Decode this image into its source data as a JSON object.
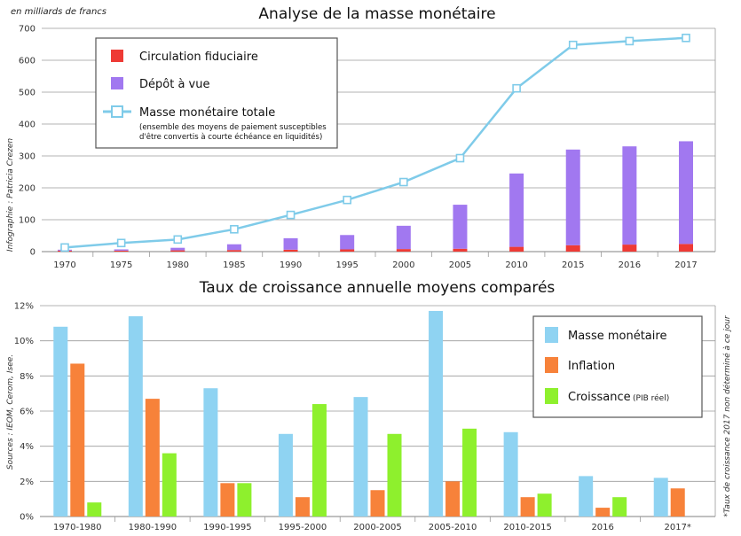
{
  "chart_data": [
    {
      "type": "bar",
      "title": "Analyse de la masse monétaire",
      "unit_label": "en milliards de francs",
      "credit": "Infographie : Patricia Crezen",
      "categories": [
        "1970",
        "1975",
        "1980",
        "1985",
        "1990",
        "1995",
        "2000",
        "2005",
        "2010",
        "2015",
        "2016",
        "2017"
      ],
      "ylim": [
        0,
        700
      ],
      "yticks": [
        "0",
        "100",
        "200",
        "300",
        "400",
        "500",
        "600",
        "700"
      ],
      "ytick_values": [
        0,
        100,
        200,
        300,
        400,
        500,
        600,
        700
      ],
      "series": [
        {
          "name": "Circulation fiduciaire",
          "kind": "bar",
          "color": "#ee3a35",
          "values": [
            3,
            3,
            4,
            5,
            6,
            7,
            8,
            9,
            15,
            20,
            22,
            24
          ]
        },
        {
          "name": "Dépôt à vue",
          "kind": "bar",
          "color": "#a178f0",
          "values": [
            3,
            4,
            8,
            18,
            36,
            45,
            73,
            138,
            230,
            300,
            308,
            322
          ]
        },
        {
          "name": "Masse monétaire totale",
          "kind": "line",
          "color": "#7fcbe9",
          "note": "(ensemble des moyens de paiement susceptibles d'être convertis à courte échéance en liquidités)",
          "note_lines": [
            "(ensemble des moyens de paiement susceptibles",
            "d'être convertis à courte échéance en liquidités)"
          ],
          "values": [
            13,
            27,
            38,
            70,
            115,
            162,
            218,
            293,
            512,
            648,
            660,
            670
          ]
        }
      ]
    },
    {
      "type": "bar",
      "title": "Taux de croissance annuelle moyens comparés",
      "sources": "Sources : IEOM, Cerom, Isee.",
      "footnote": "*Taux de croissance 2017 non déterminé à ce jour",
      "categories": [
        "1970-1980",
        "1980-1990",
        "1990-1995",
        "1995-2000",
        "2000-2005",
        "2005-2010",
        "2010-2015",
        "2016",
        "2017*"
      ],
      "ylim": [
        0,
        12
      ],
      "yticks": [
        "0%",
        "2%",
        "4%",
        "6%",
        "8%",
        "10%",
        "12%"
      ],
      "ytick_values": [
        0,
        2,
        4,
        6,
        8,
        10,
        12
      ],
      "series": [
        {
          "name": "Masse monétaire",
          "color": "#8fd3f2",
          "values": [
            10.8,
            11.4,
            7.3,
            4.7,
            6.8,
            11.7,
            4.8,
            2.3,
            2.2
          ]
        },
        {
          "name": "Inflation",
          "color": "#f7823a",
          "values": [
            8.7,
            6.7,
            1.9,
            1.1,
            1.5,
            2.0,
            1.1,
            0.5,
            1.6
          ]
        },
        {
          "name": "Croissance",
          "name_suffix": "(PIB réel)",
          "color": "#8ef02d",
          "values": [
            0.8,
            3.6,
            1.9,
            6.4,
            4.7,
            5.0,
            1.3,
            1.1,
            null
          ]
        }
      ]
    }
  ]
}
